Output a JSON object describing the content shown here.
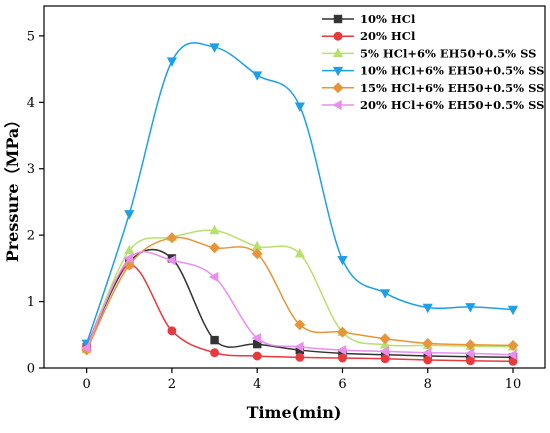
{
  "chart_data": {
    "type": "line",
    "title": "",
    "xlabel": "Time(min)",
    "ylabel": "Pressure（MPa）",
    "xlim": [
      -1,
      10.75
    ],
    "ylim": [
      0,
      5.45
    ],
    "xticks": [
      "0",
      "2",
      "4",
      "6",
      "8",
      "10"
    ],
    "yticks": [
      "0",
      "1",
      "2",
      "3",
      "4",
      "5"
    ],
    "grid": false,
    "legend_position": "top-right",
    "series": [
      {
        "name": "10% HCl",
        "color": "#333333",
        "marker": "square",
        "x": [
          0,
          1,
          2,
          3,
          4,
          5,
          6,
          7,
          8,
          9,
          10
        ],
        "y": [
          0.31,
          1.6,
          1.65,
          0.42,
          0.36,
          0.27,
          0.22,
          0.2,
          0.18,
          0.17,
          0.16
        ]
      },
      {
        "name": "20% HCl",
        "color": "#e8393e",
        "marker": "circle",
        "x": [
          0,
          1,
          2,
          3,
          4,
          5,
          6,
          7,
          8,
          9,
          10
        ],
        "y": [
          0.33,
          1.55,
          0.56,
          0.23,
          0.18,
          0.16,
          0.15,
          0.14,
          0.12,
          0.11,
          0.1
        ]
      },
      {
        "name": "5% HCl+6% EH50+0.5% SS",
        "color": "#b8e06c",
        "marker": "triangle-up",
        "x": [
          0,
          1,
          2,
          3,
          4,
          5,
          6,
          7,
          8,
          9,
          10
        ],
        "y": [
          0.28,
          1.77,
          1.97,
          2.07,
          1.83,
          1.72,
          0.54,
          0.35,
          0.34,
          0.33,
          0.32
        ]
      },
      {
        "name": "10% HCl+6% EH50+0.5% SS",
        "color": "#1ea0e6",
        "marker": "triangle-down",
        "x": [
          0,
          1,
          2,
          3,
          4,
          5,
          6,
          7,
          8,
          9,
          10
        ],
        "y": [
          0.37,
          2.32,
          4.62,
          4.83,
          4.41,
          3.94,
          1.63,
          1.13,
          0.91,
          0.92,
          0.88
        ]
      },
      {
        "name": "15% HCl+6% EH50+0.5% SS",
        "color": "#e8953a",
        "marker": "diamond",
        "x": [
          0,
          1,
          2,
          3,
          4,
          5,
          6,
          7,
          8,
          9,
          10
        ],
        "y": [
          0.27,
          1.55,
          1.96,
          1.81,
          1.72,
          0.65,
          0.54,
          0.44,
          0.37,
          0.35,
          0.34
        ]
      },
      {
        "name": "20% HCl+6% EH50+0.5% SS",
        "color": "#ea8ef0",
        "marker": "triangle-left",
        "x": [
          0,
          1,
          2,
          3,
          4,
          5,
          6,
          7,
          8,
          9,
          10
        ],
        "y": [
          0.3,
          1.65,
          1.62,
          1.37,
          0.45,
          0.32,
          0.27,
          0.25,
          0.23,
          0.22,
          0.2
        ]
      }
    ]
  }
}
